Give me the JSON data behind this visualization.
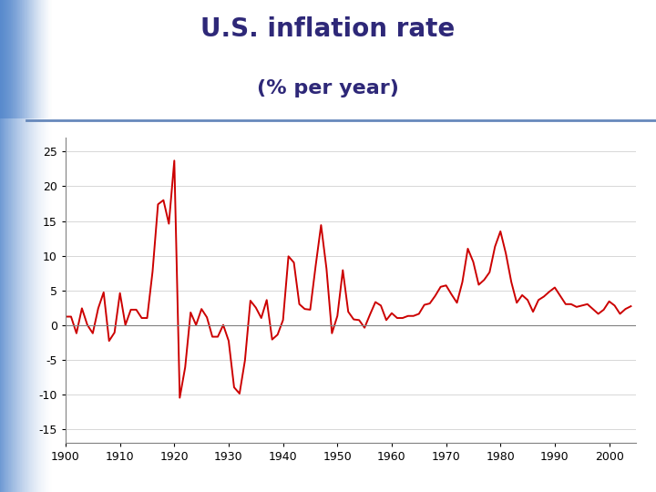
{
  "title_line1": "U.S. inflation rate",
  "title_line2": "(% per year)",
  "title_color": "#2e2878",
  "title_fontsize": 20,
  "subtitle_fontsize": 16,
  "line_color": "#cc0000",
  "line_width": 1.4,
  "background_color": "#ffffff",
  "xlim": [
    1900,
    2005
  ],
  "ylim": [
    -17,
    27
  ],
  "yticks": [
    -15,
    -10,
    -5,
    0,
    5,
    10,
    15,
    20,
    25
  ],
  "xticks": [
    1900,
    1910,
    1920,
    1930,
    1940,
    1950,
    1960,
    1970,
    1980,
    1990,
    2000
  ],
  "separator_color": "#6688bb",
  "separator_linewidth": 2.0,
  "inflation_data": {
    "1900": 1.2,
    "1901": 1.2,
    "1902": -1.2,
    "1903": 2.4,
    "1904": 0.0,
    "1905": -1.2,
    "1906": 2.4,
    "1907": 4.7,
    "1908": -2.3,
    "1909": -1.1,
    "1910": 4.6,
    "1911": 0.0,
    "1912": 2.2,
    "1913": 2.2,
    "1914": 1.0,
    "1915": 1.0,
    "1916": 7.7,
    "1917": 17.4,
    "1918": 18.0,
    "1919": 14.6,
    "1920": 23.7,
    "1921": -10.5,
    "1922": -6.1,
    "1923": 1.8,
    "1924": 0.0,
    "1925": 2.3,
    "1926": 1.1,
    "1927": -1.7,
    "1928": -1.7,
    "1929": 0.0,
    "1930": -2.3,
    "1931": -9.0,
    "1932": -9.9,
    "1933": -5.1,
    "1934": 3.5,
    "1935": 2.5,
    "1936": 1.0,
    "1937": 3.6,
    "1938": -2.1,
    "1939": -1.4,
    "1940": 0.7,
    "1941": 9.9,
    "1942": 9.0,
    "1943": 3.0,
    "1944": 2.3,
    "1945": 2.2,
    "1946": 8.5,
    "1947": 14.4,
    "1948": 8.1,
    "1949": -1.2,
    "1950": 1.3,
    "1951": 7.9,
    "1952": 1.9,
    "1953": 0.8,
    "1954": 0.7,
    "1955": -0.4,
    "1956": 1.5,
    "1957": 3.3,
    "1958": 2.8,
    "1959": 0.7,
    "1960": 1.7,
    "1961": 1.0,
    "1962": 1.0,
    "1963": 1.3,
    "1964": 1.3,
    "1965": 1.6,
    "1966": 2.9,
    "1967": 3.1,
    "1968": 4.2,
    "1969": 5.5,
    "1970": 5.7,
    "1971": 4.4,
    "1972": 3.2,
    "1973": 6.2,
    "1974": 11.0,
    "1975": 9.1,
    "1976": 5.8,
    "1977": 6.5,
    "1978": 7.6,
    "1979": 11.3,
    "1980": 13.5,
    "1981": 10.3,
    "1982": 6.2,
    "1983": 3.2,
    "1984": 4.3,
    "1985": 3.6,
    "1986": 1.9,
    "1987": 3.6,
    "1988": 4.1,
    "1989": 4.8,
    "1990": 5.4,
    "1991": 4.2,
    "1992": 3.0,
    "1993": 3.0,
    "1994": 2.6,
    "1995": 2.8,
    "1996": 3.0,
    "1997": 2.3,
    "1998": 1.6,
    "1999": 2.2,
    "2000": 3.4,
    "2001": 2.8,
    "2002": 1.6,
    "2003": 2.3,
    "2004": 2.7
  }
}
